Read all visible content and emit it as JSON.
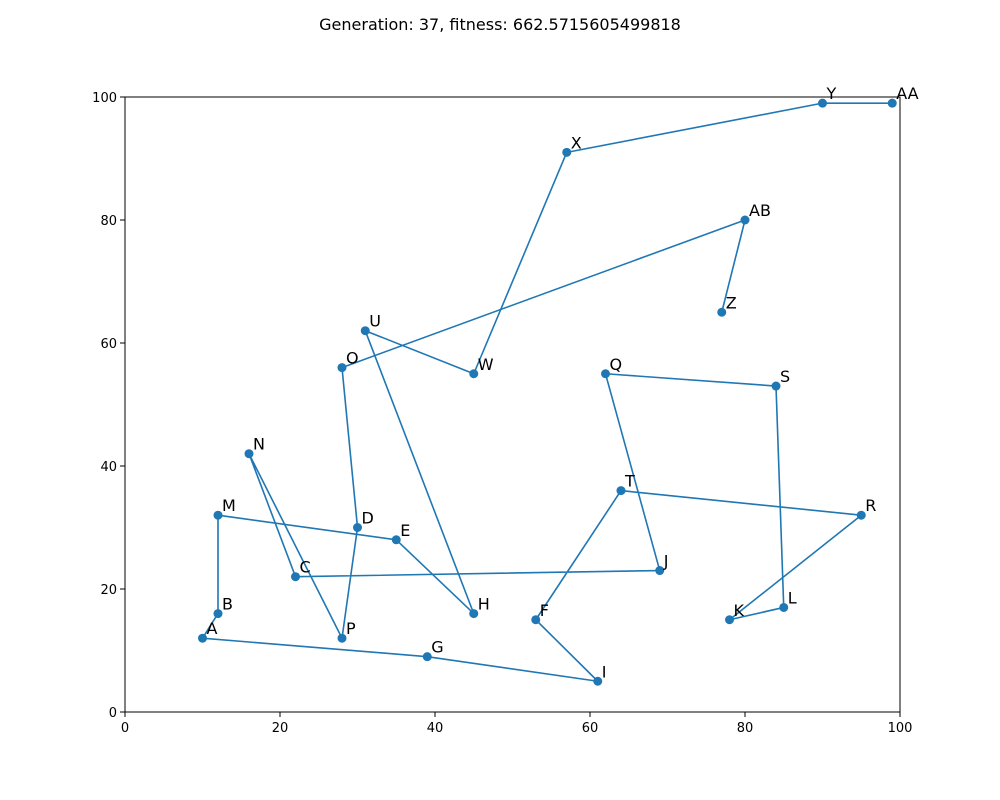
{
  "chart_data": {
    "type": "line",
    "title": "Generation: 37, fitness: 662.5715605499818",
    "xlabel": "",
    "ylabel": "",
    "xlim": [
      0,
      100
    ],
    "ylim": [
      0,
      100
    ],
    "x_ticks": [
      0,
      20,
      40,
      60,
      80,
      100
    ],
    "y_ticks": [
      0,
      20,
      40,
      60,
      80,
      100
    ],
    "grid": false,
    "series_color": "#1f77b4",
    "route": [
      {
        "label": "A",
        "x": 10,
        "y": 12
      },
      {
        "label": "G",
        "x": 39,
        "y": 9
      },
      {
        "label": "I",
        "x": 61,
        "y": 5
      },
      {
        "label": "F",
        "x": 53,
        "y": 15
      },
      {
        "label": "T",
        "x": 64,
        "y": 36
      },
      {
        "label": "R",
        "x": 95,
        "y": 32
      },
      {
        "label": "K",
        "x": 78,
        "y": 15
      },
      {
        "label": "L",
        "x": 85,
        "y": 17
      },
      {
        "label": "S",
        "x": 84,
        "y": 53
      },
      {
        "label": "Q",
        "x": 62,
        "y": 55
      },
      {
        "label": "J",
        "x": 69,
        "y": 23
      },
      {
        "label": "C",
        "x": 22,
        "y": 22
      },
      {
        "label": "N",
        "x": 16,
        "y": 42
      },
      {
        "label": "P",
        "x": 28,
        "y": 12
      },
      {
        "label": "D",
        "x": 30,
        "y": 30
      },
      {
        "label": "O",
        "x": 28,
        "y": 56
      },
      {
        "label": "AB",
        "x": 80,
        "y": 80
      },
      {
        "label": "Z",
        "x": 77,
        "y": 65
      }
    ],
    "route_2": [
      {
        "label": "A",
        "x": 10,
        "y": 12
      },
      {
        "label": "B",
        "x": 12,
        "y": 16
      },
      {
        "label": "M",
        "x": 12,
        "y": 32
      },
      {
        "label": "E",
        "x": 35,
        "y": 28
      },
      {
        "label": "H",
        "x": 45,
        "y": 16
      },
      {
        "label": "U",
        "x": 31,
        "y": 62
      },
      {
        "label": "W",
        "x": 45,
        "y": 55
      },
      {
        "label": "X",
        "x": 57,
        "y": 91
      },
      {
        "label": "Y",
        "x": 90,
        "y": 99
      },
      {
        "label": "AA",
        "x": 99,
        "y": 99
      }
    ]
  }
}
